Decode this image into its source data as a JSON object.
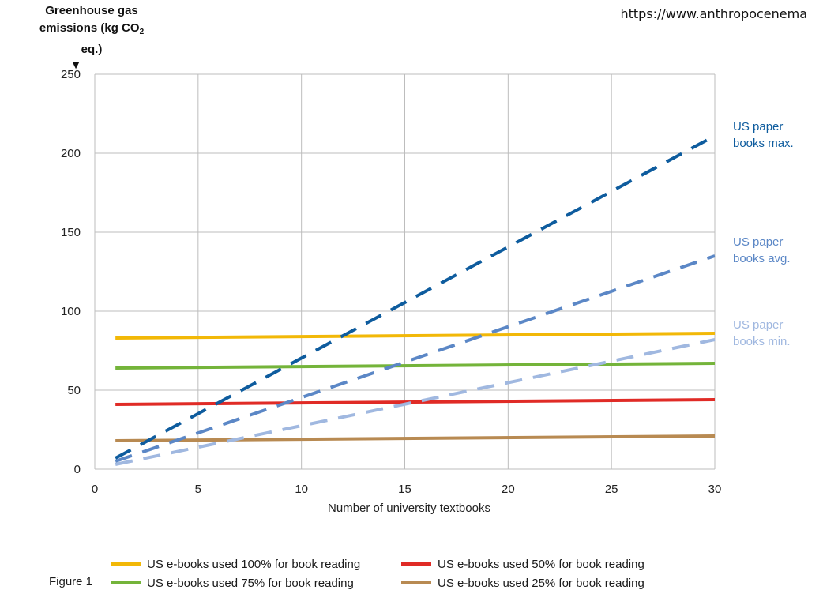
{
  "source": "https://www.anthropocenema",
  "figure_label": "Figure 1",
  "ylabel": {
    "line1": "Greenhouse gas",
    "line2_pre": "emissions (kg CO",
    "line2_sub": "2",
    "line2_post": " eq.)"
  },
  "chart_data": {
    "type": "line",
    "xlabel": "Number of university textbooks",
    "xlim": [
      0,
      30
    ],
    "ylim": [
      0,
      250
    ],
    "x_ticks": [
      0,
      5,
      10,
      15,
      20,
      25,
      30
    ],
    "y_ticks": [
      0,
      50,
      100,
      150,
      200,
      250
    ],
    "grid": true,
    "x": [
      1,
      30
    ],
    "series": [
      {
        "name": "US e-books used 100% for book reading",
        "color": "#f2b807",
        "style": "solid",
        "values": [
          83,
          86
        ]
      },
      {
        "name": "US e-books used 75% for book reading",
        "color": "#74b43a",
        "style": "solid",
        "values": [
          64,
          67
        ]
      },
      {
        "name": "US e-books used 50% for book reading",
        "color": "#e02b26",
        "style": "solid",
        "values": [
          41,
          44
        ]
      },
      {
        "name": "US e-books used 25% for book reading",
        "color": "#b88a52",
        "style": "solid",
        "values": [
          18,
          21
        ]
      },
      {
        "name": "US paper books max.",
        "color": "#0e5c9e",
        "style": "dashed",
        "values": [
          7,
          211
        ]
      },
      {
        "name": "US paper books avg.",
        "color": "#5b87c6",
        "style": "dashed",
        "values": [
          5,
          135
        ]
      },
      {
        "name": "US paper books min.",
        "color": "#a0b8e0",
        "style": "dashed",
        "values": [
          3,
          82
        ]
      }
    ],
    "line_labels": [
      {
        "line1": "US paper",
        "line2": "books  max.",
        "color": "#0e5c9e"
      },
      {
        "line1": "US paper",
        "line2": "books  avg.",
        "color": "#5b87c6"
      },
      {
        "line1": "US paper",
        "line2": "books  min.",
        "color": "#a0b8e0"
      }
    ],
    "legend_position": "bottom"
  }
}
